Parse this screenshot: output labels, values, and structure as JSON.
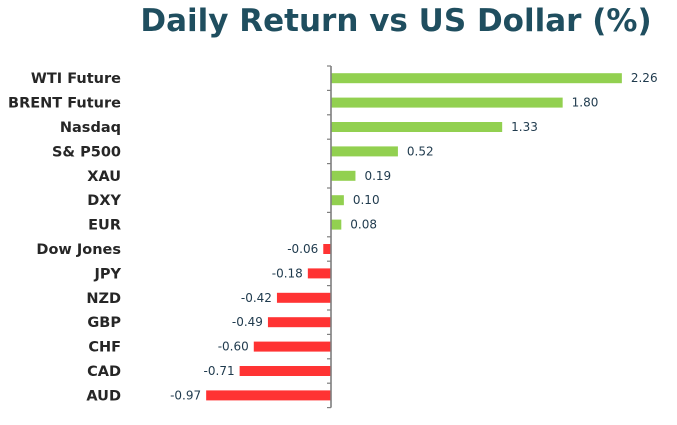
{
  "chart_data": {
    "type": "bar",
    "orientation": "horizontal",
    "title": "Daily Return vs US Dollar (%)",
    "categories": [
      "WTI Future",
      "BRENT Future",
      "Nasdaq",
      "S& P500",
      "XAU",
      "DXY",
      "EUR",
      "Dow Jones",
      "JPY",
      "NZD",
      "GBP",
      "CHF",
      "CAD",
      "AUD"
    ],
    "values": [
      2.26,
      1.8,
      1.33,
      0.52,
      0.19,
      0.1,
      0.08,
      -0.06,
      -0.18,
      -0.42,
      -0.49,
      -0.6,
      -0.71,
      -0.97
    ],
    "value_labels": [
      "2.26",
      "1.80",
      "1.33",
      "0.52",
      "0.19",
      "0.10",
      "0.08",
      "-0.06",
      "-0.18",
      "-0.42",
      "-0.49",
      "-0.60",
      "-0.71",
      "-0.97"
    ],
    "xlim": [
      -0.97,
      2.26
    ],
    "grid": false,
    "legend": "none",
    "colors": {
      "positive": "#92d050",
      "negative": "#ff3333",
      "axis": "#7f7f7f",
      "title": "#1f4e5f"
    }
  }
}
